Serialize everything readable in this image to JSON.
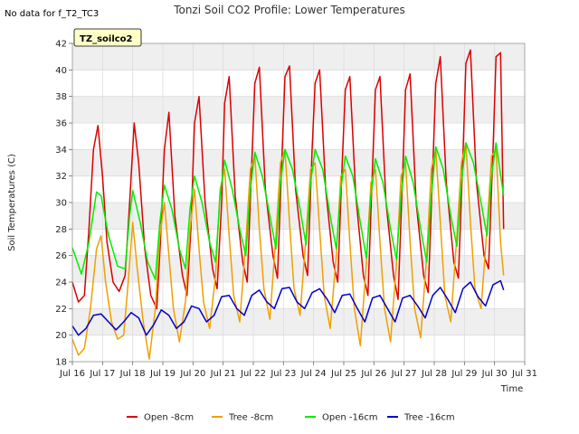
{
  "chart_data": {
    "type": "line",
    "title": "Tonzi Soil CO2 Profile: Lower Temperatures",
    "note": "No data for f_T2_TC3",
    "badge": "TZ_soilco2",
    "xlabel": "Time",
    "ylabel": "Soil Temperatures (C)",
    "xlim": [
      16,
      31
    ],
    "ylim": [
      18,
      42
    ],
    "x_ticks": [
      16,
      17,
      18,
      19,
      20,
      21,
      22,
      23,
      24,
      25,
      26,
      27,
      28,
      29,
      30,
      31
    ],
    "x_tick_labels": [
      "Jul 16",
      "Jul 17",
      "Jul 18",
      "Jul 19",
      "Jul 20",
      "Jul 21",
      "Jul 22",
      "Jul 23",
      "Jul 24",
      "Jul 25",
      "Jul 26",
      "Jul 27",
      "Jul 28",
      "Jul 29",
      "Jul 30",
      "Jul 31"
    ],
    "y_ticks": [
      18,
      20,
      22,
      24,
      26,
      28,
      30,
      32,
      34,
      36,
      38,
      40,
      42
    ],
    "y_tick_labels": [
      "18",
      "20",
      "22",
      "24",
      "26",
      "28",
      "30",
      "32",
      "34",
      "36",
      "38",
      "40",
      "42"
    ],
    "grid": true,
    "legend_position": "bottom",
    "series": [
      {
        "name": "Open -8cm",
        "color": "#dd0000",
        "x": [
          16.0,
          16.2,
          16.4,
          16.55,
          16.7,
          16.85,
          17.0,
          17.15,
          17.35,
          17.55,
          17.75,
          17.9,
          18.05,
          18.2,
          18.4,
          18.6,
          18.8,
          18.92,
          19.05,
          19.2,
          19.4,
          19.65,
          19.8,
          19.93,
          20.05,
          20.2,
          20.4,
          20.65,
          20.8,
          20.95,
          21.05,
          21.2,
          21.4,
          21.65,
          21.8,
          21.95,
          22.05,
          22.2,
          22.4,
          22.65,
          22.8,
          22.95,
          23.05,
          23.2,
          23.4,
          23.65,
          23.8,
          23.95,
          24.05,
          24.2,
          24.4,
          24.65,
          24.8,
          24.95,
          25.05,
          25.2,
          25.4,
          25.65,
          25.8,
          25.95,
          26.05,
          26.2,
          26.4,
          26.65,
          26.8,
          26.95,
          27.05,
          27.2,
          27.4,
          27.65,
          27.8,
          27.95,
          28.05,
          28.2,
          28.4,
          28.65,
          28.8,
          28.95,
          29.05,
          29.2,
          29.4,
          29.65,
          29.8,
          29.95,
          30.05,
          30.2,
          30.3
        ],
        "y": [
          24.0,
          22.5,
          23.0,
          28.0,
          34.0,
          35.8,
          32.0,
          27.0,
          24.0,
          23.3,
          24.5,
          30.0,
          36.0,
          33.0,
          26.5,
          23.0,
          22.0,
          27.0,
          34.0,
          36.8,
          29.0,
          24.5,
          23.0,
          28.0,
          36.0,
          38.0,
          30.0,
          25.0,
          23.5,
          30.0,
          37.5,
          39.5,
          30.5,
          25.5,
          24.0,
          33.0,
          39.0,
          40.2,
          31.0,
          26.0,
          24.3,
          33.5,
          39.5,
          40.3,
          31.0,
          26.0,
          24.5,
          34.0,
          39.0,
          40.0,
          31.0,
          25.5,
          24.0,
          33.0,
          38.5,
          39.5,
          30.5,
          24.5,
          23.0,
          32.5,
          38.5,
          39.5,
          30.0,
          24.5,
          22.7,
          32.0,
          38.5,
          39.7,
          30.0,
          24.5,
          23.2,
          32.5,
          39.0,
          41.0,
          31.5,
          25.5,
          24.3,
          33.5,
          40.5,
          41.5,
          31.5,
          26.0,
          25.0,
          34.0,
          41.0,
          41.3,
          28.0
        ]
      },
      {
        "name": "Tree -8cm",
        "color": "#f0a000",
        "x": [
          16.0,
          16.2,
          16.4,
          16.6,
          16.8,
          16.95,
          17.1,
          17.3,
          17.5,
          17.7,
          17.85,
          18.0,
          18.15,
          18.35,
          18.55,
          18.75,
          18.9,
          19.05,
          19.2,
          19.35,
          19.55,
          19.75,
          19.9,
          20.05,
          20.2,
          20.35,
          20.55,
          20.75,
          20.9,
          21.05,
          21.2,
          21.35,
          21.55,
          21.75,
          21.9,
          22.05,
          22.2,
          22.35,
          22.55,
          22.75,
          22.9,
          23.05,
          23.2,
          23.35,
          23.55,
          23.75,
          23.9,
          24.05,
          24.2,
          24.35,
          24.55,
          24.75,
          24.9,
          25.05,
          25.2,
          25.35,
          25.55,
          25.75,
          25.9,
          26.05,
          26.2,
          26.35,
          26.55,
          26.75,
          26.9,
          27.05,
          27.2,
          27.35,
          27.55,
          27.75,
          27.9,
          28.05,
          28.2,
          28.35,
          28.55,
          28.75,
          28.9,
          29.05,
          29.2,
          29.35,
          29.55,
          29.75,
          29.9,
          30.05,
          30.2,
          30.3
        ],
        "y": [
          19.7,
          18.5,
          19.0,
          22.0,
          26.5,
          27.5,
          24.0,
          21.0,
          19.7,
          20.0,
          24.0,
          28.5,
          25.0,
          21.0,
          18.2,
          22.0,
          27.5,
          30.0,
          26.0,
          22.0,
          19.5,
          22.5,
          28.0,
          31.0,
          26.5,
          22.5,
          20.5,
          24.5,
          31.0,
          32.5,
          27.5,
          23.0,
          21.0,
          27.0,
          32.5,
          33.5,
          28.0,
          23.5,
          21.2,
          27.5,
          33.0,
          34.0,
          28.5,
          23.5,
          21.5,
          27.5,
          32.5,
          33.0,
          28.0,
          23.0,
          20.5,
          26.0,
          32.0,
          32.5,
          27.0,
          22.0,
          19.2,
          25.5,
          31.5,
          32.5,
          27.0,
          22.0,
          19.5,
          25.5,
          32.0,
          33.0,
          27.0,
          22.0,
          19.8,
          26.0,
          32.5,
          34.0,
          28.5,
          23.0,
          21.0,
          27.5,
          33.0,
          34.5,
          28.5,
          23.5,
          22.0,
          28.0,
          33.5,
          34.0,
          27.0,
          24.5
        ]
      },
      {
        "name": "Open -16cm",
        "color": "#00ee00",
        "x": [
          16.0,
          16.3,
          16.55,
          16.8,
          16.95,
          17.2,
          17.5,
          17.75,
          17.9,
          18.0,
          18.25,
          18.5,
          18.75,
          18.9,
          19.05,
          19.3,
          19.55,
          19.75,
          19.9,
          20.05,
          20.3,
          20.55,
          20.75,
          20.9,
          21.05,
          21.3,
          21.55,
          21.75,
          21.9,
          22.05,
          22.3,
          22.55,
          22.75,
          22.9,
          23.05,
          23.3,
          23.55,
          23.75,
          23.9,
          24.05,
          24.3,
          24.55,
          24.75,
          24.9,
          25.05,
          25.3,
          25.55,
          25.75,
          25.9,
          26.05,
          26.3,
          26.55,
          26.75,
          26.9,
          27.05,
          27.3,
          27.55,
          27.75,
          27.9,
          28.05,
          28.3,
          28.55,
          28.75,
          28.9,
          29.05,
          29.3,
          29.55,
          29.75,
          29.9,
          30.05,
          30.3
        ],
        "y": [
          26.6,
          24.6,
          27.0,
          30.8,
          30.5,
          27.5,
          25.2,
          25.0,
          29.0,
          30.9,
          28.5,
          25.5,
          24.2,
          28.5,
          31.3,
          29.5,
          26.5,
          25.0,
          29.5,
          32.0,
          30.0,
          27.0,
          25.5,
          30.5,
          33.2,
          31.0,
          28.0,
          26.0,
          31.0,
          33.8,
          32.0,
          29.0,
          26.5,
          31.5,
          34.0,
          32.5,
          29.5,
          26.8,
          31.5,
          34.0,
          32.5,
          29.0,
          26.5,
          31.0,
          33.5,
          32.0,
          28.5,
          25.8,
          30.5,
          33.3,
          31.5,
          28.0,
          25.7,
          30.5,
          33.5,
          31.5,
          28.0,
          25.5,
          30.5,
          34.2,
          32.5,
          29.0,
          26.7,
          31.5,
          34.5,
          33.0,
          30.0,
          27.5,
          32.0,
          34.5,
          30.5
        ]
      },
      {
        "name": "Tree -16cm",
        "color": "#0000cc",
        "x": [
          16.0,
          16.2,
          16.45,
          16.7,
          16.95,
          17.2,
          17.45,
          17.7,
          17.95,
          18.2,
          18.45,
          18.7,
          18.95,
          19.2,
          19.45,
          19.7,
          19.95,
          20.2,
          20.45,
          20.7,
          20.95,
          21.2,
          21.45,
          21.7,
          21.95,
          22.2,
          22.45,
          22.7,
          22.95,
          23.2,
          23.45,
          23.7,
          23.95,
          24.2,
          24.45,
          24.7,
          24.95,
          25.2,
          25.45,
          25.7,
          25.95,
          26.2,
          26.45,
          26.7,
          26.95,
          27.2,
          27.45,
          27.7,
          27.95,
          28.2,
          28.45,
          28.7,
          28.95,
          29.2,
          29.45,
          29.7,
          29.95,
          30.2,
          30.3
        ],
        "y": [
          20.7,
          20.0,
          20.5,
          21.5,
          21.6,
          21.0,
          20.4,
          21.0,
          21.7,
          21.3,
          20.0,
          20.8,
          21.9,
          21.5,
          20.5,
          21.0,
          22.2,
          22.0,
          21.0,
          21.5,
          22.9,
          23.0,
          22.0,
          21.5,
          23.0,
          23.4,
          22.5,
          22.0,
          23.5,
          23.6,
          22.5,
          22.0,
          23.2,
          23.5,
          22.7,
          21.7,
          23.0,
          23.1,
          22.0,
          21.0,
          22.8,
          23.0,
          22.0,
          21.0,
          22.8,
          23.0,
          22.2,
          21.3,
          23.0,
          23.6,
          22.7,
          21.7,
          23.5,
          24.0,
          22.9,
          22.2,
          23.8,
          24.1,
          23.4
        ]
      }
    ]
  }
}
